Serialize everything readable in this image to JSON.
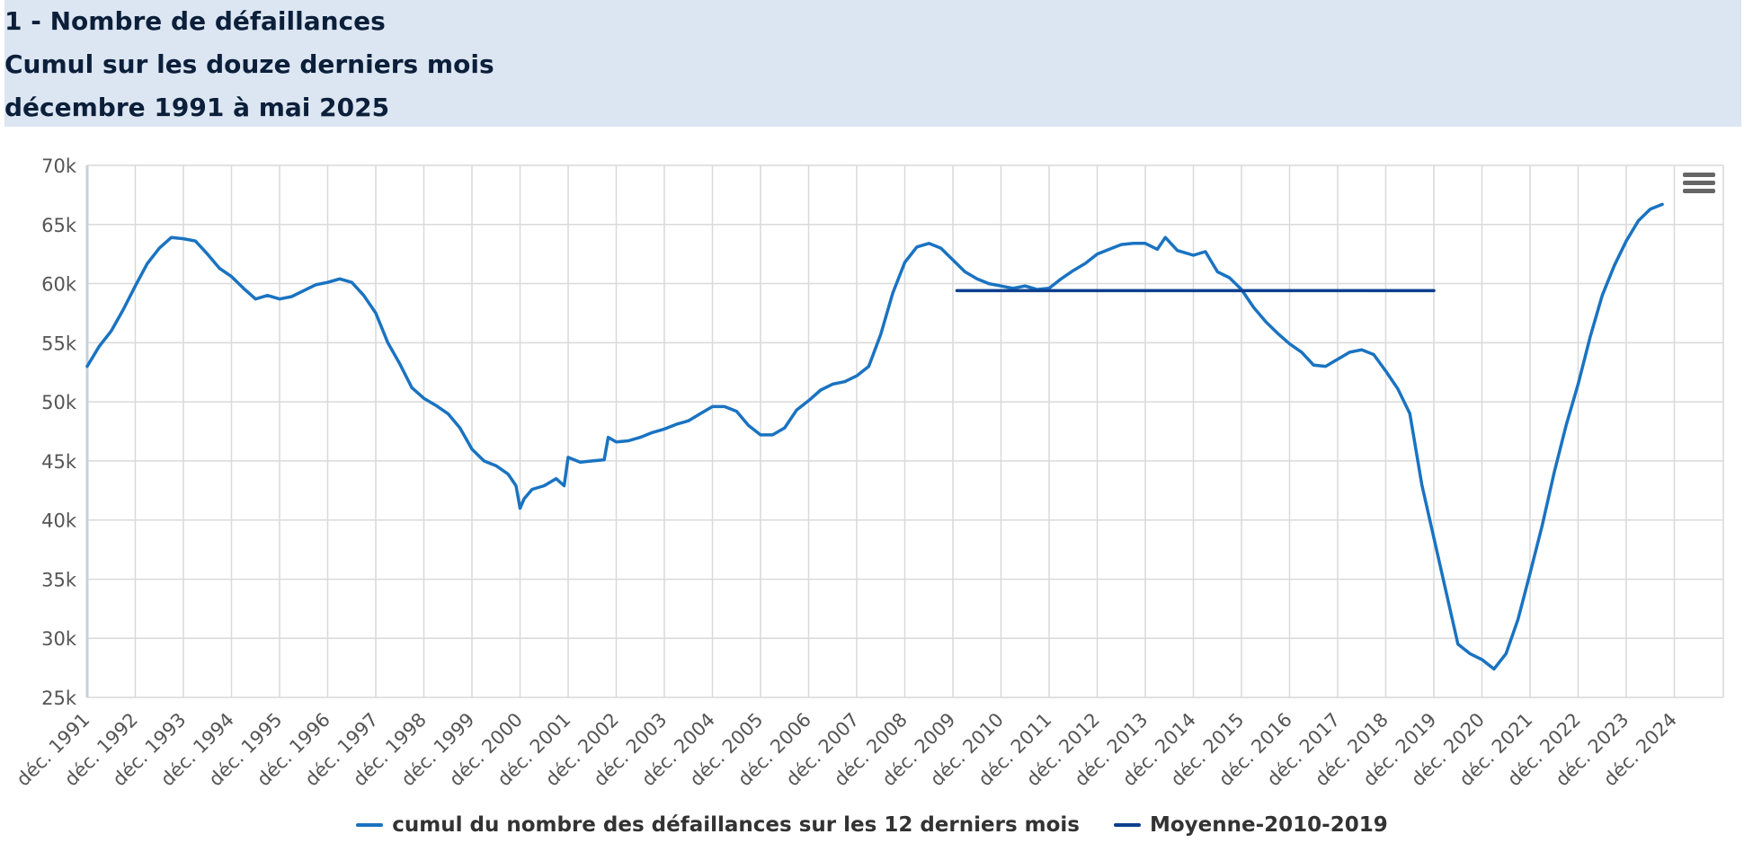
{
  "title_lines": [
    "1 - Nombre de défaillances",
    "Cumul sur les douze derniers mois",
    "décembre 1991 à mai 2025"
  ],
  "menu_icon": "hamburger-menu-icon",
  "colors": {
    "series": "#1a73c1",
    "average": "#0c3f8e",
    "grid": "#d9d9d9",
    "title_bg": "#dce6f2"
  },
  "chart_data": {
    "type": "line",
    "title": "",
    "xlabel": "",
    "ylabel": "",
    "ylim": [
      25000,
      70000
    ],
    "yticks": [
      "25k",
      "30k",
      "35k",
      "40k",
      "45k",
      "50k",
      "55k",
      "60k",
      "65k",
      "70k"
    ],
    "xlim": [
      "1991-12",
      "2025-05"
    ],
    "xticks": [
      "déc. 1991",
      "déc. 1992",
      "déc. 1993",
      "déc. 1994",
      "déc. 1995",
      "déc. 1996",
      "déc. 1997",
      "déc. 1998",
      "déc. 1999",
      "déc. 2000",
      "déc. 2001",
      "déc. 2002",
      "déc. 2003",
      "déc. 2004",
      "déc. 2005",
      "déc. 2006",
      "déc. 2007",
      "déc. 2008",
      "déc. 2009",
      "déc. 2010",
      "déc. 2011",
      "déc. 2012",
      "déc. 2013",
      "déc. 2014",
      "déc. 2015",
      "déc. 2016",
      "déc. 2017",
      "déc. 2018",
      "déc. 2019",
      "déc. 2020",
      "déc. 2021",
      "déc. 2022",
      "déc. 2023",
      "déc. 2024"
    ],
    "grid": true,
    "legend_position": "bottom",
    "series": [
      {
        "name": "cumul du nombre des défaillances sur les 12 derniers mois",
        "points": [
          [
            "1991-12",
            53000
          ],
          [
            "1992-03",
            54700
          ],
          [
            "1992-06",
            56000
          ],
          [
            "1992-09",
            57800
          ],
          [
            "1992-12",
            59800
          ],
          [
            "1993-03",
            61700
          ],
          [
            "1993-06",
            63000
          ],
          [
            "1993-09",
            63900
          ],
          [
            "1993-12",
            63800
          ],
          [
            "1994-03",
            63600
          ],
          [
            "1994-06",
            62500
          ],
          [
            "1994-09",
            61300
          ],
          [
            "1994-12",
            60600
          ],
          [
            "1995-03",
            59600
          ],
          [
            "1995-06",
            58700
          ],
          [
            "1995-09",
            59000
          ],
          [
            "1995-12",
            58700
          ],
          [
            "1996-03",
            58900
          ],
          [
            "1996-06",
            59400
          ],
          [
            "1996-09",
            59900
          ],
          [
            "1996-12",
            60100
          ],
          [
            "1997-03",
            60400
          ],
          [
            "1997-06",
            60100
          ],
          [
            "1997-09",
            59000
          ],
          [
            "1997-12",
            57500
          ],
          [
            "1998-03",
            55000
          ],
          [
            "1998-06",
            53200
          ],
          [
            "1998-09",
            51200
          ],
          [
            "1998-12",
            50300
          ],
          [
            "1999-03",
            49700
          ],
          [
            "1999-06",
            49000
          ],
          [
            "1999-09",
            47800
          ],
          [
            "1999-12",
            46000
          ],
          [
            "2000-03",
            45000
          ],
          [
            "2000-06",
            44600
          ],
          [
            "2000-09",
            43900
          ],
          [
            "2000-11",
            42900
          ],
          [
            "2000-12",
            41000
          ],
          [
            "2001-01",
            41800
          ],
          [
            "2001-03",
            42600
          ],
          [
            "2001-06",
            42900
          ],
          [
            "2001-09",
            43500
          ],
          [
            "2001-11",
            42900
          ],
          [
            "2001-12",
            45300
          ],
          [
            "2002-03",
            44900
          ],
          [
            "2002-06",
            45000
          ],
          [
            "2002-09",
            45100
          ],
          [
            "2002-10",
            47000
          ],
          [
            "2002-12",
            46600
          ],
          [
            "2003-03",
            46700
          ],
          [
            "2003-06",
            47000
          ],
          [
            "2003-09",
            47400
          ],
          [
            "2003-12",
            47700
          ],
          [
            "2004-03",
            48100
          ],
          [
            "2004-06",
            48400
          ],
          [
            "2004-09",
            49000
          ],
          [
            "2004-12",
            49600
          ],
          [
            "2005-03",
            49600
          ],
          [
            "2005-06",
            49200
          ],
          [
            "2005-09",
            48000
          ],
          [
            "2005-12",
            47200
          ],
          [
            "2006-03",
            47200
          ],
          [
            "2006-06",
            47800
          ],
          [
            "2006-09",
            49300
          ],
          [
            "2006-12",
            50100
          ],
          [
            "2007-03",
            51000
          ],
          [
            "2007-06",
            51500
          ],
          [
            "2007-09",
            51700
          ],
          [
            "2007-12",
            52200
          ],
          [
            "2008-03",
            53000
          ],
          [
            "2008-06",
            55700
          ],
          [
            "2008-09",
            59200
          ],
          [
            "2008-12",
            61800
          ],
          [
            "2009-03",
            63100
          ],
          [
            "2009-06",
            63400
          ],
          [
            "2009-09",
            63000
          ],
          [
            "2009-12",
            62000
          ],
          [
            "2010-03",
            61000
          ],
          [
            "2010-06",
            60400
          ],
          [
            "2010-09",
            60000
          ],
          [
            "2010-12",
            59800
          ],
          [
            "2011-03",
            59600
          ],
          [
            "2011-06",
            59800
          ],
          [
            "2011-09",
            59500
          ],
          [
            "2011-12",
            59600
          ],
          [
            "2012-03",
            60400
          ],
          [
            "2012-06",
            61100
          ],
          [
            "2012-09",
            61700
          ],
          [
            "2012-12",
            62500
          ],
          [
            "2013-03",
            62900
          ],
          [
            "2013-06",
            63300
          ],
          [
            "2013-09",
            63400
          ],
          [
            "2013-12",
            63400
          ],
          [
            "2014-03",
            62900
          ],
          [
            "2014-05",
            63900
          ],
          [
            "2014-08",
            62800
          ],
          [
            "2014-12",
            62400
          ],
          [
            "2015-03",
            62700
          ],
          [
            "2015-06",
            61000
          ],
          [
            "2015-09",
            60500
          ],
          [
            "2015-12",
            59500
          ],
          [
            "2016-03",
            58000
          ],
          [
            "2016-06",
            56800
          ],
          [
            "2016-09",
            55800
          ],
          [
            "2016-12",
            54900
          ],
          [
            "2017-03",
            54200
          ],
          [
            "2017-06",
            53100
          ],
          [
            "2017-09",
            53000
          ],
          [
            "2017-12",
            53600
          ],
          [
            "2018-03",
            54200
          ],
          [
            "2018-06",
            54400
          ],
          [
            "2018-09",
            54000
          ],
          [
            "2018-12",
            52600
          ],
          [
            "2019-03",
            51100
          ],
          [
            "2019-06",
            49000
          ],
          [
            "2019-09",
            43000
          ],
          [
            "2019-12",
            38500
          ],
          [
            "2020-03",
            34000
          ],
          [
            "2020-06",
            29500
          ],
          [
            "2020-09",
            28700
          ],
          [
            "2020-12",
            28200
          ],
          [
            "2021-03",
            27400
          ],
          [
            "2021-06",
            28700
          ],
          [
            "2021-09",
            31600
          ],
          [
            "2021-12",
            35500
          ],
          [
            "2022-03",
            39500
          ],
          [
            "2022-06",
            44000
          ],
          [
            "2022-09",
            48000
          ],
          [
            "2022-12",
            51500
          ],
          [
            "2023-03",
            55500
          ],
          [
            "2023-06",
            59000
          ],
          [
            "2023-09",
            61500
          ],
          [
            "2023-12",
            63600
          ],
          [
            "2024-03",
            65300
          ],
          [
            "2024-06",
            66300
          ],
          [
            "2024-09",
            66700
          ]
        ]
      },
      {
        "name": "Moyenne-2010-2019",
        "points": [
          [
            "2010-01",
            59400
          ],
          [
            "2019-12",
            59400
          ]
        ]
      }
    ]
  }
}
